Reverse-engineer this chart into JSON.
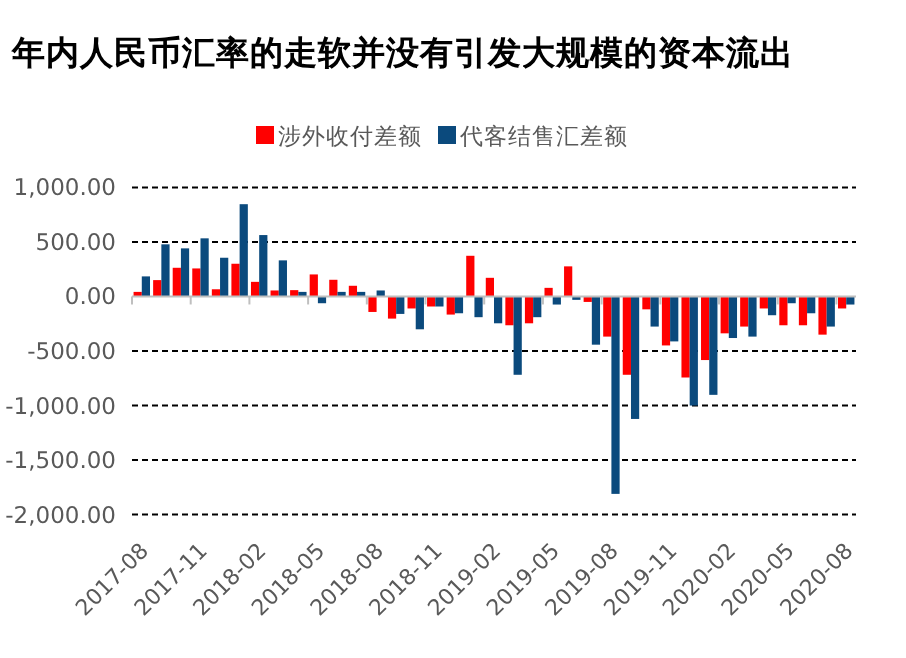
{
  "chart_data": {
    "type": "bar",
    "title": "年内人民币汇率的走软并没有引发大规模的资本流出",
    "categories": [
      "2017-08",
      null,
      null,
      "2017-11",
      null,
      null,
      "2018-02",
      null,
      null,
      "2018-05",
      null,
      null,
      "2018-08",
      null,
      null,
      "2018-11",
      null,
      null,
      "2019-02",
      null,
      null,
      "2019-05",
      null,
      null,
      "2019-08",
      null,
      null,
      "2019-11",
      null,
      null,
      "2020-02",
      null,
      null,
      "2020-05",
      null,
      null,
      "2020-08"
    ],
    "series": [
      {
        "name": "涉外收付差额",
        "color": "#ff0000",
        "values": [
          42,
          150,
          263,
          257,
          66,
          300,
          134,
          55,
          58,
          202,
          153,
          98,
          -142,
          -203,
          -110,
          -92,
          -166,
          373,
          171,
          -264,
          -246,
          79,
          276,
          -50,
          -368,
          -718,
          -118,
          -449,
          -743,
          -583,
          -338,
          -276,
          -110,
          -264,
          -264,
          -350,
          -110
        ]
      },
      {
        "name": "代客结售汇差额",
        "color": "#0b4a7d",
        "values": [
          184,
          478,
          441,
          533,
          355,
          846,
          563,
          331,
          42,
          -62,
          42,
          42,
          55,
          -160,
          -301,
          -92,
          -154,
          -190,
          -246,
          -718,
          -190,
          -74,
          -31,
          -442,
          -1810,
          -1123,
          -276,
          -412,
          -1000,
          -902,
          -381,
          -368,
          -172,
          -62,
          -154,
          -276,
          -74
        ]
      }
    ],
    "ylim": [
      -2000,
      1000
    ],
    "yticks": [
      {
        "value": -2000,
        "label": "-2,000.00"
      },
      {
        "value": -1500,
        "label": "-1,500.00"
      },
      {
        "value": -1000,
        "label": "-1,000.00"
      },
      {
        "value": -500,
        "label": "-500.00"
      },
      {
        "value": 0,
        "label": "0.00"
      },
      {
        "value": 500,
        "label": "500.00"
      },
      {
        "value": 1000,
        "label": "1,000.00"
      }
    ],
    "grid": "y",
    "legend": "top"
  }
}
